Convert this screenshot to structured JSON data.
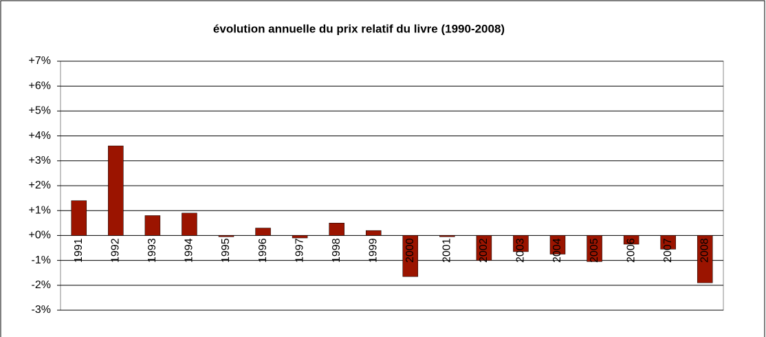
{
  "chart_data": {
    "type": "bar",
    "title": "évolution annuelle du prix relatif du livre (1990-2008)",
    "categories": [
      "1991",
      "1992",
      "1993",
      "1994",
      "1995",
      "1996",
      "1997",
      "1998",
      "1999",
      "2000",
      "2001",
      "2002",
      "2003",
      "2004",
      "2005",
      "2006",
      "2007",
      "2008"
    ],
    "values": [
      1.4,
      3.6,
      0.8,
      0.9,
      -0.05,
      0.3,
      -0.1,
      0.5,
      0.2,
      -1.65,
      -0.05,
      -1.0,
      -0.65,
      -0.75,
      -1.05,
      -0.35,
      -0.55,
      -1.9
    ],
    "color": "#9b1400",
    "ylim": [
      -3,
      7
    ],
    "yticks": [
      {
        "value": -3,
        "label": "-3%"
      },
      {
        "value": -2,
        "label": "-2%"
      },
      {
        "value": -1,
        "label": "-1%"
      },
      {
        "value": 0,
        "label": "+0%"
      },
      {
        "value": 1,
        "label": "+1%"
      },
      {
        "value": 2,
        "label": "+2%"
      },
      {
        "value": 3,
        "label": "+3%"
      },
      {
        "value": 4,
        "label": "+4%"
      },
      {
        "value": 5,
        "label": "+5%"
      },
      {
        "value": 6,
        "label": "+6%"
      },
      {
        "value": 7,
        "label": "+7%"
      }
    ],
    "grid": true
  }
}
